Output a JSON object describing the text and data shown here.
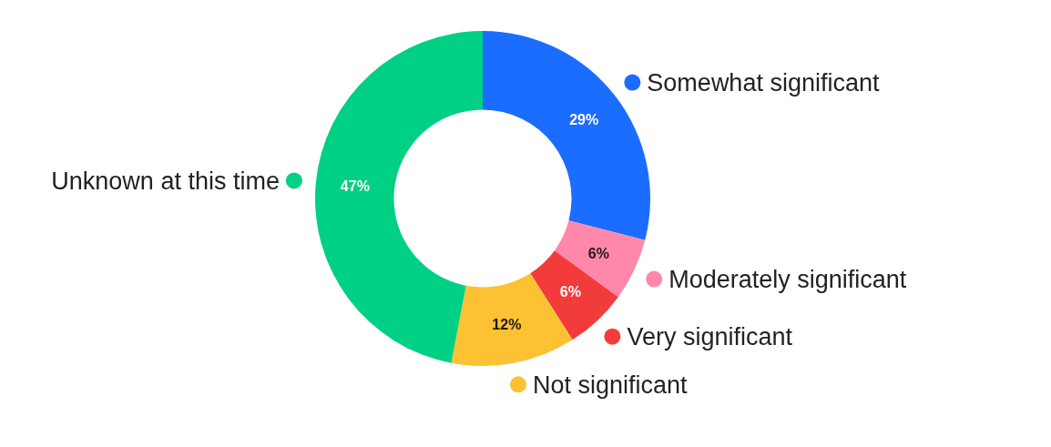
{
  "chart_data": {
    "type": "donut",
    "categories": [
      "Somewhat significant",
      "Moderately significant",
      "Very significant",
      "Not significant",
      "Unknown at this time"
    ],
    "values": [
      29,
      6,
      6,
      12,
      47
    ],
    "colors": [
      "#1a6dff",
      "#ff88aa",
      "#f23c3c",
      "#fcc233",
      "#00d084"
    ],
    "value_labels": [
      "29%",
      "6%",
      "6%",
      "12%",
      "47%"
    ],
    "legend": "right"
  }
}
